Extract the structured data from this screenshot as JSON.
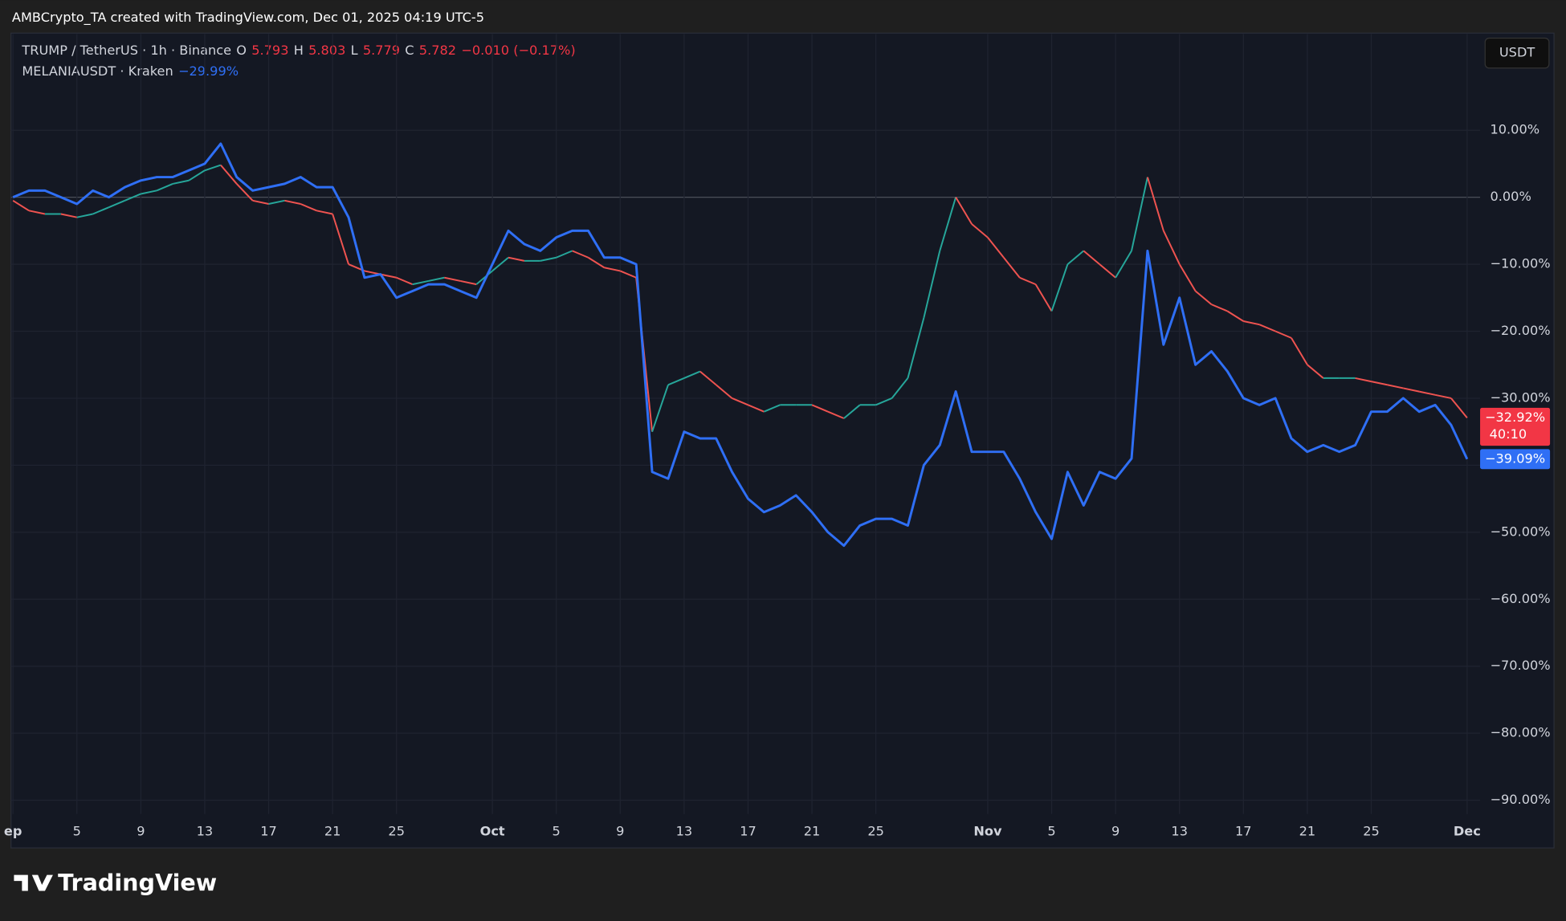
{
  "header": {
    "watermark": "AMBCrypto_TA created with TradingView.com, Dec 01, 2025 04:19 UTC-5",
    "currency_button": "USDT",
    "logo": "TradingView"
  },
  "chart_data": {
    "type": "line",
    "categories": [
      "ep",
      null,
      null,
      null,
      "5",
      null,
      null,
      null,
      "9",
      null,
      null,
      null,
      "13",
      null,
      null,
      null,
      "17",
      null,
      null,
      null,
      "21",
      null,
      null,
      null,
      "25",
      null,
      null,
      null,
      null,
      null,
      "Oct",
      null,
      null,
      null,
      "5",
      null,
      null,
      null,
      "9",
      null,
      null,
      null,
      "13",
      null,
      null,
      null,
      "17",
      null,
      null,
      null,
      "21",
      null,
      null,
      null,
      "25",
      null,
      null,
      null,
      null,
      null,
      null,
      "Nov",
      null,
      null,
      null,
      "5",
      null,
      null,
      null,
      "9",
      null,
      null,
      null,
      "13",
      null,
      null,
      null,
      "17",
      null,
      null,
      null,
      "21",
      null,
      null,
      null,
      "25",
      null,
      null,
      null,
      null,
      null,
      "Dec"
    ],
    "ylim": [
      -92.8,
      24.2
    ],
    "yticks": [
      {
        "value": 10,
        "label": "10.00%"
      },
      {
        "value": 0,
        "label": "0.00%"
      },
      {
        "value": -10,
        "label": "−10.00%"
      },
      {
        "value": -20,
        "label": "−20.00%"
      },
      {
        "value": -30,
        "label": "−30.00%"
      },
      {
        "value": -40,
        "label": "−40.00%"
      },
      {
        "value": -50,
        "label": "−50.00%"
      },
      {
        "value": -60,
        "label": "−60.00%"
      },
      {
        "value": -70,
        "label": "−70.00%"
      },
      {
        "value": -80,
        "label": "−80.00%"
      },
      {
        "value": -90,
        "label": "−90.00%"
      }
    ],
    "grid": true,
    "series": [
      {
        "name": "TRUMP / TetherUS · 1h · Binance",
        "style": "candles",
        "color": "#f23645",
        "up_color": "#26a69a",
        "down_color": "#ef5350",
        "ohlc": [
          {
            "letter": "O",
            "text": "5.793"
          },
          {
            "letter": "H",
            "text": "5.803"
          },
          {
            "letter": "L",
            "text": "5.779"
          },
          {
            "letter": "C",
            "text": "5.782"
          }
        ],
        "change_label": "−0.010 (−0.17%)",
        "last_value_label": "−32.92%",
        "countdown": "40:10",
        "values": [
          -0.5,
          -2,
          -2.5,
          -2.5,
          -3,
          -2.5,
          -1.5,
          -0.5,
          0.5,
          1,
          2,
          2.5,
          4,
          4.8,
          2,
          -0.5,
          -1,
          -0.5,
          -1,
          -2,
          -2.5,
          -10,
          -11,
          -11.5,
          -12,
          -13,
          -12.5,
          -12,
          -12.5,
          -13,
          -11,
          -9,
          -9.5,
          -9.5,
          -9,
          -8,
          -9,
          -10.5,
          -11,
          -12,
          -35,
          -28,
          -27,
          -26,
          -28,
          -30,
          -31,
          -32,
          -31,
          -31,
          -31,
          -32,
          -33,
          -31,
          -31,
          -30,
          -27,
          -18,
          -8,
          0,
          -4,
          -6,
          -9,
          -12,
          -13,
          -17,
          -10,
          -8,
          -10,
          -12,
          -8,
          3,
          -5,
          -10,
          -14,
          -16,
          -17,
          -18.5,
          -19,
          -20,
          -21,
          -25,
          -27,
          -27,
          -27,
          -27.5,
          -28,
          -28.5,
          -29,
          -29.5,
          -30,
          -32.92
        ]
      },
      {
        "name": "MELANIAUSDT · Kraken",
        "style": "line",
        "color": "#2f6ff5",
        "legend_value": "−29.99%",
        "last_value_label": "−39.09%",
        "values": [
          0,
          1,
          1,
          0,
          -1,
          1,
          0,
          1.5,
          2.5,
          3,
          3,
          4,
          5,
          8,
          3,
          1,
          1.5,
          2,
          3,
          1.5,
          1.5,
          -3,
          -12,
          -11.5,
          -15,
          -14,
          -13,
          -13,
          -14,
          -15,
          -10,
          -5,
          -7,
          -8,
          -6,
          -5,
          -5,
          -9,
          -9,
          -10,
          -41,
          -42,
          -35,
          -36,
          -36,
          -41,
          -45,
          -47,
          -46,
          -44.5,
          -47,
          -50,
          -52,
          -49,
          -48,
          -48,
          -49,
          -40,
          -37,
          -29,
          -38,
          -38,
          -38,
          -42,
          -47,
          -51,
          -41,
          -46,
          -41,
          -42,
          -39,
          -8,
          -22,
          -15,
          -25,
          -23,
          -26,
          -30,
          -31,
          -30,
          -36,
          -38,
          -37,
          -38,
          -37,
          -32,
          -32,
          -30,
          -32,
          -31,
          -34,
          -39.09
        ]
      }
    ]
  }
}
